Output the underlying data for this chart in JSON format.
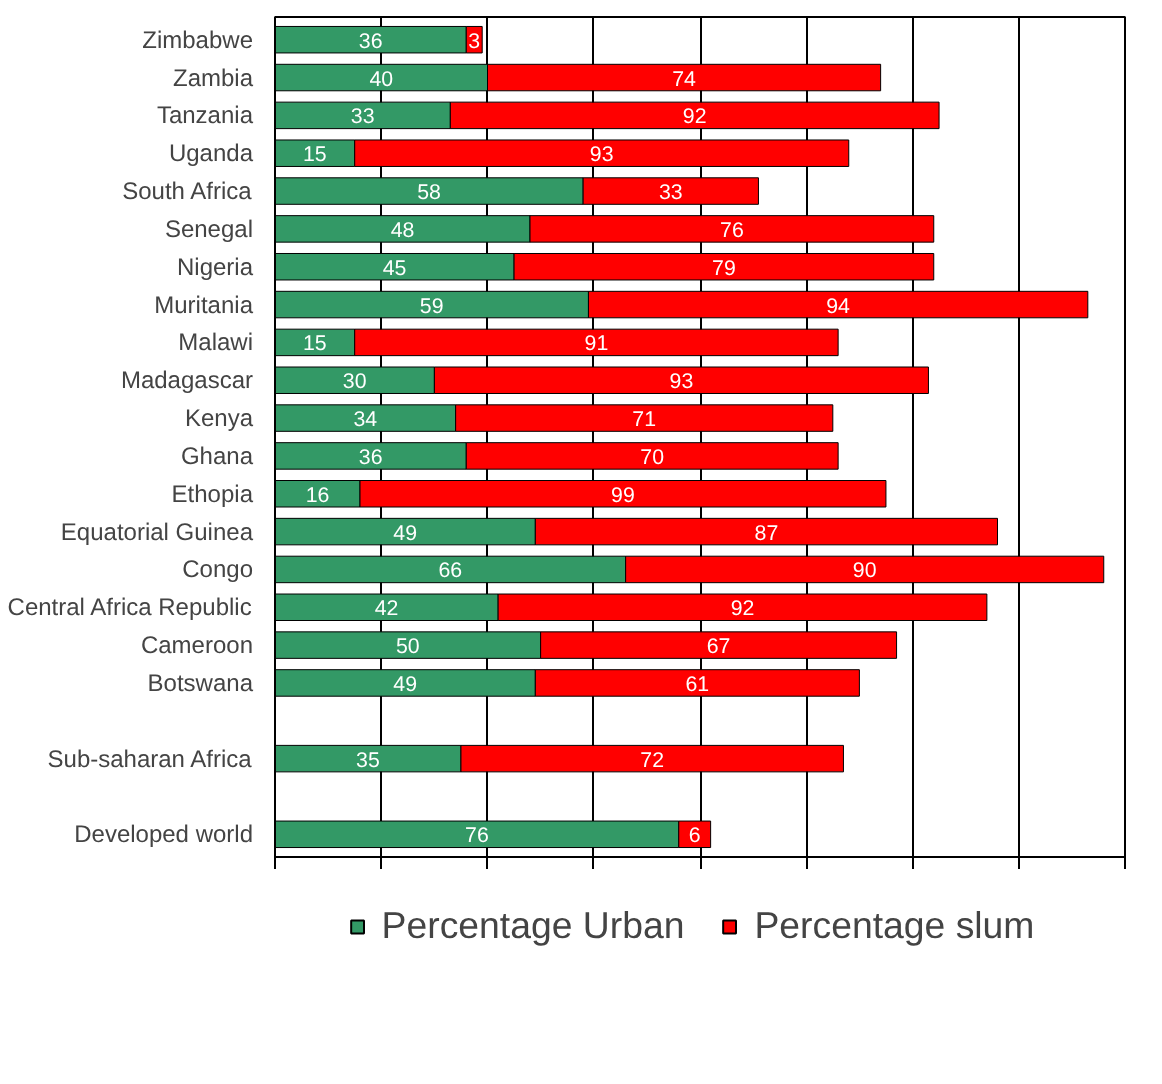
{
  "chart_data": {
    "type": "bar",
    "orientation": "horizontal",
    "stacked": true,
    "categories": [
      "Zimbabwe",
      "Zambia",
      "Tanzania",
      "Uganda",
      "South Africa",
      "Senegal",
      "Nigeria",
      "Muritania",
      "Malawi",
      "Madagascar",
      "Kenya",
      "Ghana",
      "Ethopia",
      "Equatorial Guinea",
      "Congo",
      "Central Africa Republic",
      "Cameroon",
      "Botswana",
      null,
      "Sub-saharan Africa",
      null,
      "Developed world"
    ],
    "series": [
      {
        "name": "Percentage Urban",
        "color": "#339966",
        "values": [
          36,
          40,
          33,
          15,
          58,
          48,
          45,
          59,
          15,
          30,
          34,
          36,
          16,
          49,
          66,
          42,
          50,
          49,
          null,
          35,
          null,
          76
        ]
      },
      {
        "name": "Percentage slum",
        "color": "#ff0000",
        "values": [
          3,
          74,
          92,
          93,
          33,
          76,
          79,
          94,
          91,
          93,
          71,
          70,
          99,
          87,
          90,
          92,
          67,
          61,
          null,
          72,
          null,
          6
        ]
      }
    ],
    "xlim": [
      0,
      160
    ],
    "xticks": [
      {
        "value": 0,
        "label": null
      },
      {
        "value": 20,
        "label": null
      },
      {
        "value": 40,
        "label": null
      },
      {
        "value": 60,
        "label": null
      },
      {
        "value": 80,
        "label": null
      },
      {
        "value": 100,
        "label": null
      },
      {
        "value": 120,
        "label": null
      },
      {
        "value": 140,
        "label": null
      },
      {
        "value": 160,
        "label": null
      }
    ],
    "grid": "x",
    "tick_labels": "y",
    "data_labels": true,
    "legend": "bottom"
  }
}
